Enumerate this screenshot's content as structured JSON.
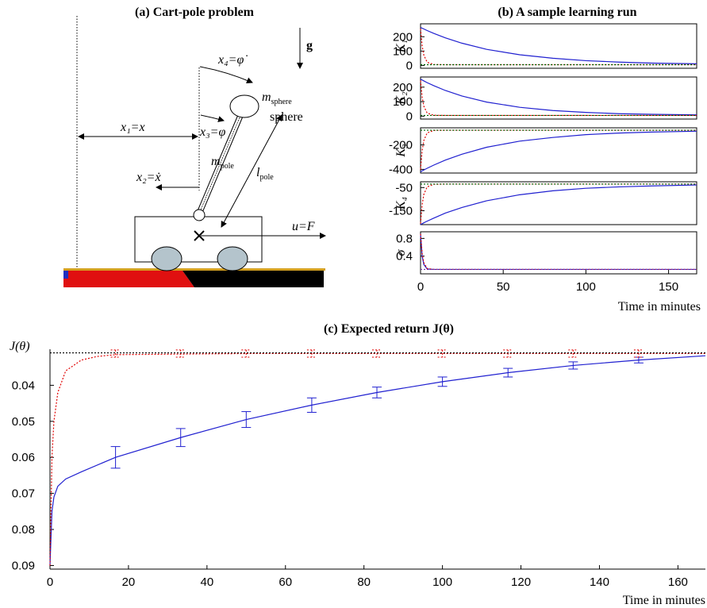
{
  "diagram": {
    "title": "(a) Cart-pole problem",
    "g": "g",
    "x4": "x₄=φ̇",
    "m_sphere": {
      "main": "m",
      "sub": "sphere"
    },
    "sphere_label": "sphere",
    "x1": "x₁=x",
    "x3": "x₃=φ",
    "m_pole": {
      "main": "m",
      "sub": "pole"
    },
    "l_pole": {
      "main": "l",
      "sub": "pole"
    },
    "x2": "x₂=ẋ",
    "u": "u=F"
  },
  "chart_data": [
    {
      "type": "line",
      "title": "(b) A sample learning run",
      "ylabel": "K₁",
      "frame": true,
      "xlim": [
        0,
        167
      ],
      "ylim": [
        -20,
        290
      ],
      "yticks": [
        0,
        100,
        200
      ],
      "x": [
        0,
        1,
        2,
        4,
        8,
        15,
        25,
        40,
        60,
        80,
        100,
        120,
        140,
        167
      ],
      "series": [
        {
          "color": "#2020d0",
          "style": "solid",
          "values": [
            265,
            259,
            254,
            243,
            223,
            192,
            155,
            112,
            74,
            50,
            33,
            23,
            16,
            11
          ]
        },
        {
          "color": "#e00000",
          "style": "dotted",
          "values": [
            255,
            133,
            71,
            22,
            6,
            5,
            5,
            5,
            5,
            5,
            5,
            5,
            5,
            5
          ]
        },
        {
          "color": "#006400",
          "style": "dotted",
          "values": [
            5,
            5,
            5,
            5,
            5,
            5,
            5,
            5,
            5,
            5,
            5,
            5,
            5,
            5
          ]
        }
      ]
    },
    {
      "type": "line",
      "ylabel": "K₂",
      "frame": true,
      "xlim": [
        0,
        167
      ],
      "ylim": [
        -20,
        270
      ],
      "yticks": [
        0,
        100,
        200
      ],
      "x": [
        0,
        1,
        2,
        4,
        8,
        15,
        25,
        40,
        60,
        80,
        100,
        120,
        140,
        167
      ],
      "series": [
        {
          "color": "#2020d0",
          "style": "solid",
          "values": [
            255,
            249,
            243,
            231,
            210,
            177,
            139,
            97,
            61,
            39,
            26,
            17,
            13,
            9
          ]
        },
        {
          "color": "#e00000",
          "style": "dotted",
          "values": [
            245,
            128,
            68,
            21,
            6,
            5,
            5,
            5,
            5,
            5,
            5,
            5,
            5,
            5
          ]
        },
        {
          "color": "#006400",
          "style": "dotted",
          "values": [
            5,
            5,
            5,
            5,
            5,
            5,
            5,
            5,
            5,
            5,
            5,
            5,
            5,
            5
          ]
        }
      ]
    },
    {
      "type": "line",
      "ylabel": "K₃",
      "frame": true,
      "xlim": [
        0,
        167
      ],
      "ylim": [
        -430,
        -60
      ],
      "yticks": [
        -400,
        -200
      ],
      "x": [
        0,
        1,
        2,
        4,
        8,
        15,
        25,
        40,
        60,
        80,
        100,
        120,
        140,
        167
      ],
      "series": [
        {
          "color": "#2020d0",
          "style": "solid",
          "values": [
            -420,
            -412,
            -405,
            -391,
            -365,
            -324,
            -276,
            -219,
            -169,
            -139,
            -116,
            -103,
            -95,
            -88
          ]
        },
        {
          "color": "#e00000",
          "style": "dotted",
          "values": [
            -400,
            -244,
            -163,
            -102,
            -81,
            -80,
            -80,
            -80,
            -80,
            -80,
            -80,
            -80,
            -80,
            -80
          ]
        },
        {
          "color": "#006400",
          "style": "dotted",
          "values": [
            -80,
            -80,
            -80,
            -80,
            -80,
            -80,
            -80,
            -80,
            -80,
            -80,
            -80,
            -80,
            -80,
            -80
          ]
        }
      ]
    },
    {
      "type": "line",
      "ylabel": "K₄",
      "frame": true,
      "xlim": [
        0,
        167
      ],
      "ylim": [
        -210,
        -25
      ],
      "yticks": [
        -150,
        -50
      ],
      "x": [
        0,
        1,
        2,
        4,
        8,
        15,
        25,
        40,
        60,
        80,
        100,
        120,
        140,
        167
      ],
      "series": [
        {
          "color": "#2020d0",
          "style": "solid",
          "values": [
            -210,
            -206,
            -202,
            -195,
            -182,
            -160,
            -136,
            -107,
            -81,
            -64,
            -53,
            -47,
            -43,
            -39
          ]
        },
        {
          "color": "#e00000",
          "style": "dotted",
          "values": [
            -205,
            -122,
            -79,
            -47,
            -36,
            -35,
            -35,
            -35,
            -35,
            -35,
            -35,
            -35,
            -35,
            -35
          ]
        },
        {
          "color": "#006400",
          "style": "dotted",
          "values": [
            -35,
            -35,
            -35,
            -35,
            -35,
            -35,
            -35,
            -35,
            -35,
            -35,
            -35,
            -35,
            -35,
            -35
          ]
        }
      ]
    },
    {
      "type": "line",
      "ylabel": "σ",
      "frame": true,
      "xlim": [
        0,
        167
      ],
      "ylim": [
        0,
        0.95
      ],
      "yticks": [
        0.4,
        0.8
      ],
      "xticks": [
        0,
        50,
        100,
        150
      ],
      "xlabel": "Time in minutes",
      "x": [
        0,
        1,
        2,
        4,
        8,
        15,
        25,
        40,
        60,
        80,
        100,
        120,
        140,
        167
      ],
      "series": [
        {
          "color": "#2020d0",
          "style": "solid",
          "values": [
            0.9,
            0.39,
            0.21,
            0.11,
            0.1,
            0.1,
            0.1,
            0.1,
            0.1,
            0.1,
            0.1,
            0.1,
            0.1,
            0.1
          ]
        },
        {
          "color": "#e00000",
          "style": "dotted",
          "values": [
            0.9,
            0.45,
            0.25,
            0.12,
            0.1,
            0.1,
            0.1,
            0.1,
            0.1,
            0.1,
            0.1,
            0.1,
            0.1,
            0.1
          ]
        },
        {
          "color": "#7030a0",
          "style": "dotted",
          "values": [
            0.1,
            0.1,
            0.1,
            0.1,
            0.1,
            0.1,
            0.1,
            0.1,
            0.1,
            0.1,
            0.1,
            0.1,
            0.1,
            0.1
          ]
        }
      ]
    },
    {
      "type": "line",
      "title": "(c) Expected return J(θ)",
      "ylabel": "J(θ)",
      "xlabel": "Time in minutes",
      "frame": false,
      "xlim": [
        0,
        167
      ],
      "xticks": [
        0,
        20,
        40,
        60,
        80,
        100,
        120,
        140,
        160
      ],
      "ylim": [
        0.091,
        0.03
      ],
      "yticks": [
        0.04,
        0.05,
        0.06,
        0.07,
        0.08,
        0.09
      ],
      "series": [
        {
          "color": "#2020d0",
          "style": "solid",
          "x": [
            0,
            0.5,
            1,
            2,
            4,
            8,
            16.7,
            33.3,
            50,
            66.7,
            83.3,
            100,
            116.7,
            133.3,
            150,
            167
          ],
          "values": [
            0.09,
            0.075,
            0.071,
            0.068,
            0.066,
            0.064,
            0.06,
            0.0545,
            0.0495,
            0.0455,
            0.042,
            0.039,
            0.0365,
            0.0345,
            0.033,
            0.0318
          ],
          "bar_x": [
            16.7,
            33.3,
            50,
            66.7,
            83.3,
            100,
            116.7,
            133.3,
            150
          ],
          "bar_values": [
            0.06,
            0.0545,
            0.0495,
            0.0455,
            0.042,
            0.039,
            0.0365,
            0.0345,
            0.033
          ],
          "bar_errors": [
            0.003,
            0.0025,
            0.0022,
            0.002,
            0.0015,
            0.0013,
            0.0012,
            0.001,
            0.0008
          ]
        },
        {
          "color": "#e00000",
          "style": "dotted",
          "x": [
            0,
            0.5,
            1,
            2,
            4,
            8,
            12,
            16.7,
            50,
            100,
            167
          ],
          "values": [
            0.09,
            0.06,
            0.05,
            0.042,
            0.036,
            0.033,
            0.032,
            0.0315,
            0.0312,
            0.0312,
            0.0312
          ],
          "bar_x": [
            16.7,
            33.3,
            50,
            66.7,
            83.3,
            100,
            116.7,
            133.3,
            150
          ],
          "bar_values": [
            0.0312,
            0.0312,
            0.0312,
            0.0312,
            0.0312,
            0.0312,
            0.0312,
            0.0312,
            0.0312
          ],
          "bar_errors": [
            0.001,
            0.001,
            0.001,
            0.001,
            0.001,
            0.001,
            0.001,
            0.001,
            0.001
          ]
        },
        {
          "color": "#000000",
          "style": "dotted",
          "x": [
            0,
            167
          ],
          "values": [
            0.031,
            0.031
          ]
        }
      ]
    }
  ]
}
